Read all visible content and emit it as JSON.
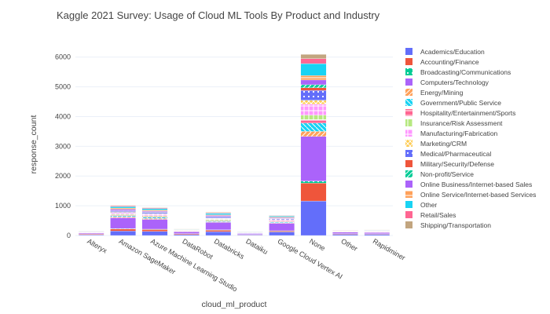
{
  "chart_data": {
    "type": "bar",
    "barmode": "stack",
    "title": "Kaggle 2021 Survey: Usage of Cloud ML Tools By Product and Industry",
    "xlabel": "cloud_ml_product",
    "ylabel": "response_count",
    "ylim": [
      0,
      6600
    ],
    "yticks": [
      0,
      1000,
      2000,
      3000,
      4000,
      5000,
      6000
    ],
    "grid": true,
    "legend_position": "right",
    "categories": [
      "Alteryx",
      "Amazon SageMaker",
      "Azure Machine Learning Studio",
      "DataRobot",
      "Databricks",
      "Dataiku",
      "Google Cloud Vertex AI",
      "None",
      "Other",
      "Rapidminer"
    ],
    "series": [
      {
        "name": "Academics/Education",
        "color": "#636efa",
        "pattern": "solid",
        "values": [
          25,
          150,
          140,
          35,
          130,
          20,
          120,
          1160,
          40,
          40
        ]
      },
      {
        "name": "Accounting/Finance",
        "color": "#ef553b",
        "pattern": "solid",
        "values": [
          20,
          70,
          60,
          25,
          50,
          15,
          30,
          600,
          20,
          15
        ]
      },
      {
        "name": "Broadcasting/Communications",
        "color": "#00cc96",
        "pattern": "dots",
        "values": [
          3,
          15,
          12,
          3,
          12,
          2,
          10,
          70,
          3,
          3
        ]
      },
      {
        "name": "Computers/Technology",
        "color": "#ab63fa",
        "pattern": "solid",
        "values": [
          30,
          360,
          330,
          60,
          250,
          30,
          250,
          1500,
          50,
          45
        ]
      },
      {
        "name": "Energy/Mining",
        "color": "#ffa15a",
        "pattern": "slash",
        "values": [
          5,
          35,
          35,
          10,
          20,
          5,
          15,
          170,
          6,
          6
        ]
      },
      {
        "name": "Government/Public Service",
        "color": "#19d3f3",
        "pattern": "backslash",
        "values": [
          6,
          30,
          40,
          8,
          25,
          5,
          25,
          280,
          6,
          8
        ]
      },
      {
        "name": "Hospitality/Entertainment/Sports",
        "color": "#ff6692",
        "pattern": "hline",
        "values": [
          3,
          20,
          18,
          4,
          15,
          3,
          18,
          120,
          4,
          4
        ]
      },
      {
        "name": "Insurance/Risk Assessment",
        "color": "#b6e880",
        "pattern": "vline",
        "values": [
          8,
          30,
          30,
          10,
          30,
          5,
          20,
          150,
          5,
          6
        ]
      },
      {
        "name": "Manufacturing/Fabrication",
        "color": "#ff97ff",
        "pattern": "grid",
        "values": [
          10,
          50,
          55,
          12,
          40,
          8,
          30,
          370,
          10,
          15
        ]
      },
      {
        "name": "Marketing/CRM",
        "color": "#fecb52",
        "pattern": "cross",
        "values": [
          6,
          20,
          18,
          6,
          18,
          4,
          18,
          130,
          5,
          5
        ]
      },
      {
        "name": "Medical/Pharmaceutical",
        "color": "#636efa",
        "pattern": "dots",
        "values": [
          7,
          35,
          40,
          10,
          40,
          6,
          25,
          330,
          8,
          7
        ]
      },
      {
        "name": "Military/Security/Defense",
        "color": "#ef553b",
        "pattern": "solid",
        "values": [
          2,
          10,
          12,
          2,
          8,
          2,
          5,
          90,
          3,
          2
        ]
      },
      {
        "name": "Non-profit/Service",
        "color": "#00cc96",
        "pattern": "slash",
        "values": [
          2,
          8,
          8,
          2,
          6,
          2,
          6,
          100,
          3,
          2
        ]
      },
      {
        "name": "Online Business/Internet-based Sales",
        "color": "#ab63fa",
        "pattern": "solid",
        "values": [
          4,
          50,
          30,
          6,
          30,
          4,
          25,
          160,
          5,
          4
        ]
      },
      {
        "name": "Online Service/Internet-based Services",
        "color": "#ffa15a",
        "pattern": "hline",
        "values": [
          4,
          40,
          30,
          6,
          25,
          4,
          25,
          150,
          5,
          5
        ]
      },
      {
        "name": "Other",
        "color": "#19d3f3",
        "pattern": "solid",
        "values": [
          10,
          45,
          50,
          12,
          45,
          8,
          35,
          400,
          10,
          12
        ]
      },
      {
        "name": "Retail/Sales",
        "color": "#ff6692",
        "pattern": "solid",
        "values": [
          5,
          25,
          20,
          6,
          20,
          4,
          15,
          170,
          5,
          5
        ]
      },
      {
        "name": "Shipping/Transportation",
        "color": "#c2a57f",
        "pattern": "solid",
        "values": [
          4,
          20,
          15,
          5,
          18,
          4,
          10,
          140,
          4,
          4
        ]
      }
    ]
  }
}
